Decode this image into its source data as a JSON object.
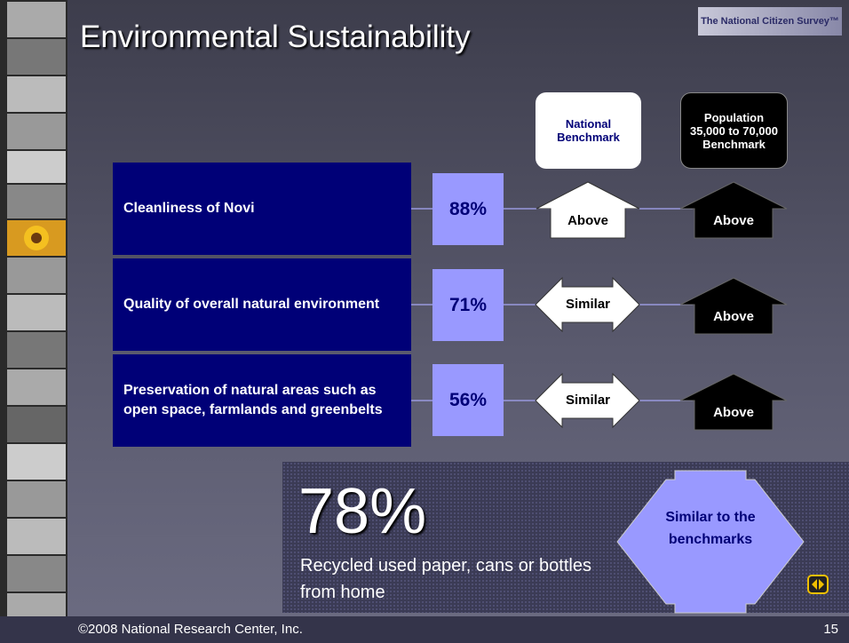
{
  "header": {
    "title": "Environmental Sustainability",
    "logo": "The National Citizen Survey™"
  },
  "columns": {
    "national": "National Benchmark",
    "population": "Population 35,000 to 70,000 Benchmark"
  },
  "rows": [
    {
      "label": "Cleanliness of Novi",
      "percent": "88%",
      "national": "Above",
      "population": "Above"
    },
    {
      "label": "Quality of overall natural environment",
      "percent": "71%",
      "national": "Similar",
      "population": "Above"
    },
    {
      "label": "Preservation of natural areas such as open space, farmlands and greenbelts",
      "percent": "56%",
      "national": "Similar",
      "population": "Above"
    }
  ],
  "highlight": {
    "value": "78%",
    "caption": "Recycled used paper, cans or bottles from home",
    "comparison": "Similar to the benchmarks"
  },
  "footer": {
    "copyright": "©2008 National Research Center, Inc.",
    "page": "15"
  }
}
